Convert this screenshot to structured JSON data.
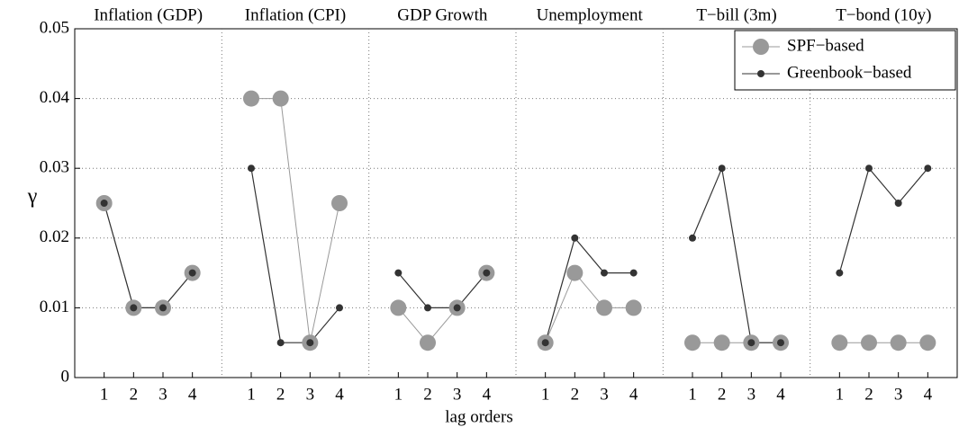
{
  "chart_data": {
    "type": "line",
    "ylabel": "γ",
    "xlabel": "lag orders",
    "ylim": [
      0,
      0.05
    ],
    "yticks": [
      0,
      0.01,
      0.02,
      0.03,
      0.04,
      0.05
    ],
    "grid": true,
    "legend": "upper right",
    "categories": [
      "1",
      "2",
      "3",
      "4"
    ],
    "panels": [
      {
        "title": "Inflation (GDP)",
        "series": [
          {
            "name": "SPF−based",
            "color": "#999999",
            "values": [
              0.025,
              0.01,
              0.01,
              0.015
            ]
          },
          {
            "name": "Greenbook−based",
            "color": "#333333",
            "values": [
              0.025,
              0.01,
              0.01,
              0.015
            ]
          }
        ]
      },
      {
        "title": "Inflation (CPI)",
        "series": [
          {
            "name": "SPF−based",
            "color": "#999999",
            "values": [
              0.04,
              0.04,
              0.005,
              0.025
            ]
          },
          {
            "name": "Greenbook−based",
            "color": "#333333",
            "values": [
              0.03,
              0.005,
              0.005,
              0.01
            ]
          }
        ]
      },
      {
        "title": "GDP Growth",
        "series": [
          {
            "name": "SPF−based",
            "color": "#999999",
            "values": [
              0.01,
              0.005,
              0.01,
              0.015
            ]
          },
          {
            "name": "Greenbook−based",
            "color": "#333333",
            "values": [
              0.015,
              0.01,
              0.01,
              0.015
            ]
          }
        ]
      },
      {
        "title": "Unemployment",
        "series": [
          {
            "name": "SPF−based",
            "color": "#999999",
            "values": [
              0.005,
              0.015,
              0.01,
              0.01
            ]
          },
          {
            "name": "Greenbook−based",
            "color": "#333333",
            "values": [
              0.005,
              0.02,
              0.015,
              0.015
            ]
          }
        ]
      },
      {
        "title": "T−bill (3m)",
        "series": [
          {
            "name": "SPF−based",
            "color": "#999999",
            "values": [
              0.005,
              0.005,
              0.005,
              0.005
            ]
          },
          {
            "name": "Greenbook−based",
            "color": "#333333",
            "values": [
              0.02,
              0.03,
              0.005,
              0.005
            ]
          }
        ]
      },
      {
        "title": "T−bond (10y)",
        "series": [
          {
            "name": "SPF−based",
            "color": "#999999",
            "values": [
              0.005,
              0.005,
              0.005,
              0.005
            ]
          },
          {
            "name": "Greenbook−based",
            "color": "#333333",
            "values": [
              0.015,
              0.03,
              0.025,
              0.03
            ]
          }
        ]
      }
    ]
  }
}
